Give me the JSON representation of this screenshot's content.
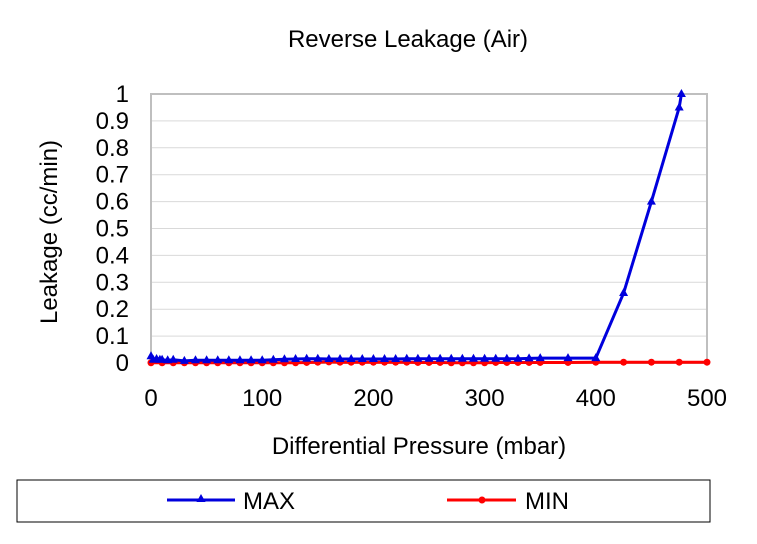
{
  "chart_data": {
    "type": "line",
    "title": "Reverse Leakage (Air)",
    "xlabel": "Differential Pressure (mbar)",
    "ylabel": "Leakage (cc/min)",
    "xlim": [
      0,
      500
    ],
    "ylim": [
      0,
      1
    ],
    "x_ticks": [
      "0",
      "100",
      "200",
      "300",
      "400",
      "500"
    ],
    "y_ticks": [
      "0",
      "0.1",
      "0.2",
      "0.3",
      "0.4",
      "0.5",
      "0.6",
      "0.7",
      "0.8",
      "0.9",
      "1"
    ],
    "grid": true,
    "legend_position": "bottom",
    "series": [
      {
        "name": "MAX",
        "color": "#0000dd",
        "marker": "triangle",
        "points": [
          [
            0,
            0.025
          ],
          [
            2,
            0.012
          ],
          [
            5,
            0.015
          ],
          [
            8,
            0.012
          ],
          [
            10,
            0.012
          ],
          [
            15,
            0.01
          ],
          [
            20,
            0.012
          ],
          [
            30,
            0.008
          ],
          [
            40,
            0.01
          ],
          [
            50,
            0.01
          ],
          [
            60,
            0.01
          ],
          [
            70,
            0.01
          ],
          [
            80,
            0.01
          ],
          [
            90,
            0.01
          ],
          [
            100,
            0.01
          ],
          [
            110,
            0.012
          ],
          [
            120,
            0.014
          ],
          [
            130,
            0.015
          ],
          [
            140,
            0.016
          ],
          [
            150,
            0.016
          ],
          [
            160,
            0.015
          ],
          [
            170,
            0.015
          ],
          [
            180,
            0.015
          ],
          [
            190,
            0.015
          ],
          [
            200,
            0.015
          ],
          [
            210,
            0.015
          ],
          [
            220,
            0.015
          ],
          [
            230,
            0.016
          ],
          [
            240,
            0.016
          ],
          [
            250,
            0.016
          ],
          [
            260,
            0.016
          ],
          [
            270,
            0.016
          ],
          [
            280,
            0.016
          ],
          [
            290,
            0.016
          ],
          [
            300,
            0.016
          ],
          [
            310,
            0.016
          ],
          [
            320,
            0.016
          ],
          [
            330,
            0.016
          ],
          [
            340,
            0.017
          ],
          [
            350,
            0.018
          ],
          [
            375,
            0.018
          ],
          [
            400,
            0.018
          ],
          [
            425,
            0.26
          ],
          [
            450,
            0.6
          ],
          [
            475,
            0.95
          ],
          [
            477,
            1.0
          ]
        ]
      },
      {
        "name": "MIN",
        "color": "#ff0000",
        "marker": "circle",
        "points": [
          [
            0,
            0.001
          ],
          [
            10,
            0.001
          ],
          [
            20,
            0.001
          ],
          [
            30,
            0.001
          ],
          [
            40,
            0.001
          ],
          [
            50,
            0.001
          ],
          [
            60,
            0.001
          ],
          [
            70,
            0.001
          ],
          [
            80,
            0.001
          ],
          [
            90,
            0.001
          ],
          [
            100,
            0.001
          ],
          [
            110,
            0.001
          ],
          [
            120,
            0.001
          ],
          [
            130,
            0.001
          ],
          [
            140,
            0.002
          ],
          [
            150,
            0.003
          ],
          [
            160,
            0.004
          ],
          [
            170,
            0.003
          ],
          [
            180,
            0.003
          ],
          [
            190,
            0.003
          ],
          [
            200,
            0.003
          ],
          [
            210,
            0.003
          ],
          [
            220,
            0.003
          ],
          [
            230,
            0.003
          ],
          [
            240,
            0.002
          ],
          [
            250,
            0.002
          ],
          [
            260,
            0.002
          ],
          [
            270,
            0.001
          ],
          [
            280,
            0.001
          ],
          [
            290,
            0.001
          ],
          [
            300,
            0.001
          ],
          [
            310,
            0.002
          ],
          [
            320,
            0.002
          ],
          [
            330,
            0.002
          ],
          [
            340,
            0.002
          ],
          [
            350,
            0.002
          ],
          [
            375,
            0.002
          ],
          [
            400,
            0.003
          ],
          [
            425,
            0.003
          ],
          [
            450,
            0.003
          ],
          [
            475,
            0.003
          ],
          [
            500,
            0.003
          ]
        ]
      }
    ]
  }
}
